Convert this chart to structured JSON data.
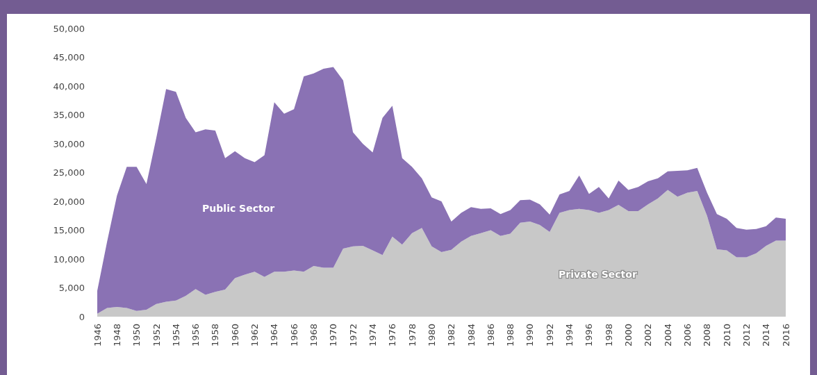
{
  "chart_data": {
    "type": "area",
    "stacked": true,
    "legend": false,
    "x": [
      1946,
      1947,
      1948,
      1949,
      1950,
      1951,
      1952,
      1953,
      1954,
      1955,
      1956,
      1957,
      1958,
      1959,
      1960,
      1961,
      1962,
      1963,
      1964,
      1965,
      1966,
      1967,
      1968,
      1969,
      1970,
      1971,
      1972,
      1973,
      1974,
      1975,
      1976,
      1977,
      1978,
      1979,
      1980,
      1981,
      1982,
      1983,
      1984,
      1985,
      1986,
      1987,
      1988,
      1989,
      1990,
      1991,
      1992,
      1993,
      1994,
      1995,
      1996,
      1997,
      1998,
      1999,
      2000,
      2001,
      2002,
      2003,
      2004,
      2005,
      2006,
      2007,
      2008,
      2009,
      2010,
      2011,
      2012,
      2013,
      2014,
      2015,
      2016
    ],
    "series": [
      {
        "name": "Private Sector",
        "color": "#c8c8c8",
        "values": [
          500,
          1500,
          1700,
          1500,
          1000,
          1200,
          2200,
          2600,
          2800,
          3600,
          4800,
          3800,
          4300,
          4700,
          6700,
          7300,
          7800,
          6900,
          7800,
          7800,
          8000,
          7800,
          8800,
          8500,
          8500,
          11800,
          12200,
          12300,
          11500,
          10700,
          13900,
          12500,
          14500,
          15400,
          12200,
          11200,
          11600,
          13000,
          14000,
          14500,
          15000,
          14000,
          14400,
          16300,
          16500,
          15900,
          14700,
          18000,
          18500,
          18700,
          18500,
          18000,
          18500,
          19400,
          18300,
          18300,
          19500,
          20500,
          22000,
          20800,
          21500,
          21800,
          17500,
          11700,
          11500,
          10300,
          10300,
          11000,
          12300,
          13200,
          13200
        ]
      },
      {
        "name": "Public Sector",
        "color": "#8a72b4",
        "values": [
          4000,
          11500,
          19300,
          24500,
          25000,
          21800,
          28800,
          36900,
          36200,
          30900,
          27200,
          28700,
          28000,
          22800,
          22000,
          20200,
          19000,
          21100,
          29400,
          27400,
          28000,
          33900,
          33400,
          34500,
          34800,
          29200,
          19800,
          17700,
          17000,
          23800,
          22700,
          15000,
          11500,
          8600,
          8500,
          8800,
          4900,
          5000,
          5000,
          4200,
          3800,
          3800,
          4100,
          3900,
          3800,
          3600,
          3000,
          3200,
          3300,
          5800,
          2800,
          4500,
          2000,
          4200,
          3700,
          4200,
          4000,
          3500,
          3200,
          4500,
          3900,
          4000,
          4000,
          6100,
          5500,
          5100,
          4800,
          4200,
          3400,
          4000,
          3800
        ]
      }
    ],
    "xlim": [
      1946,
      2016
    ],
    "xticks": [
      1946,
      1948,
      1950,
      1952,
      1954,
      1956,
      1958,
      1960,
      1962,
      1964,
      1966,
      1968,
      1970,
      1972,
      1974,
      1976,
      1978,
      1980,
      1982,
      1984,
      1986,
      1988,
      1990,
      1992,
      1994,
      1996,
      1998,
      2000,
      2002,
      2004,
      2006,
      2008,
      2010,
      2012,
      2014,
      2016
    ],
    "ylim": [
      0,
      50000
    ],
    "yticks": [
      0,
      {
        "value": 5000,
        "label": "5,000"
      },
      {
        "value": 10000,
        "label": "10,000"
      },
      {
        "value": 15000,
        "label": "15,000"
      },
      {
        "value": 20000,
        "label": "20,000"
      },
      {
        "value": 25000,
        "label": "25,000"
      },
      {
        "value": 30000,
        "label": "30,000"
      },
      {
        "value": 35000,
        "label": "35,000"
      },
      {
        "value": 40000,
        "label": "40,000"
      },
      {
        "value": 45000,
        "label": "45,000"
      },
      {
        "value": 50000,
        "label": "50,000"
      }
    ],
    "grid": false
  }
}
